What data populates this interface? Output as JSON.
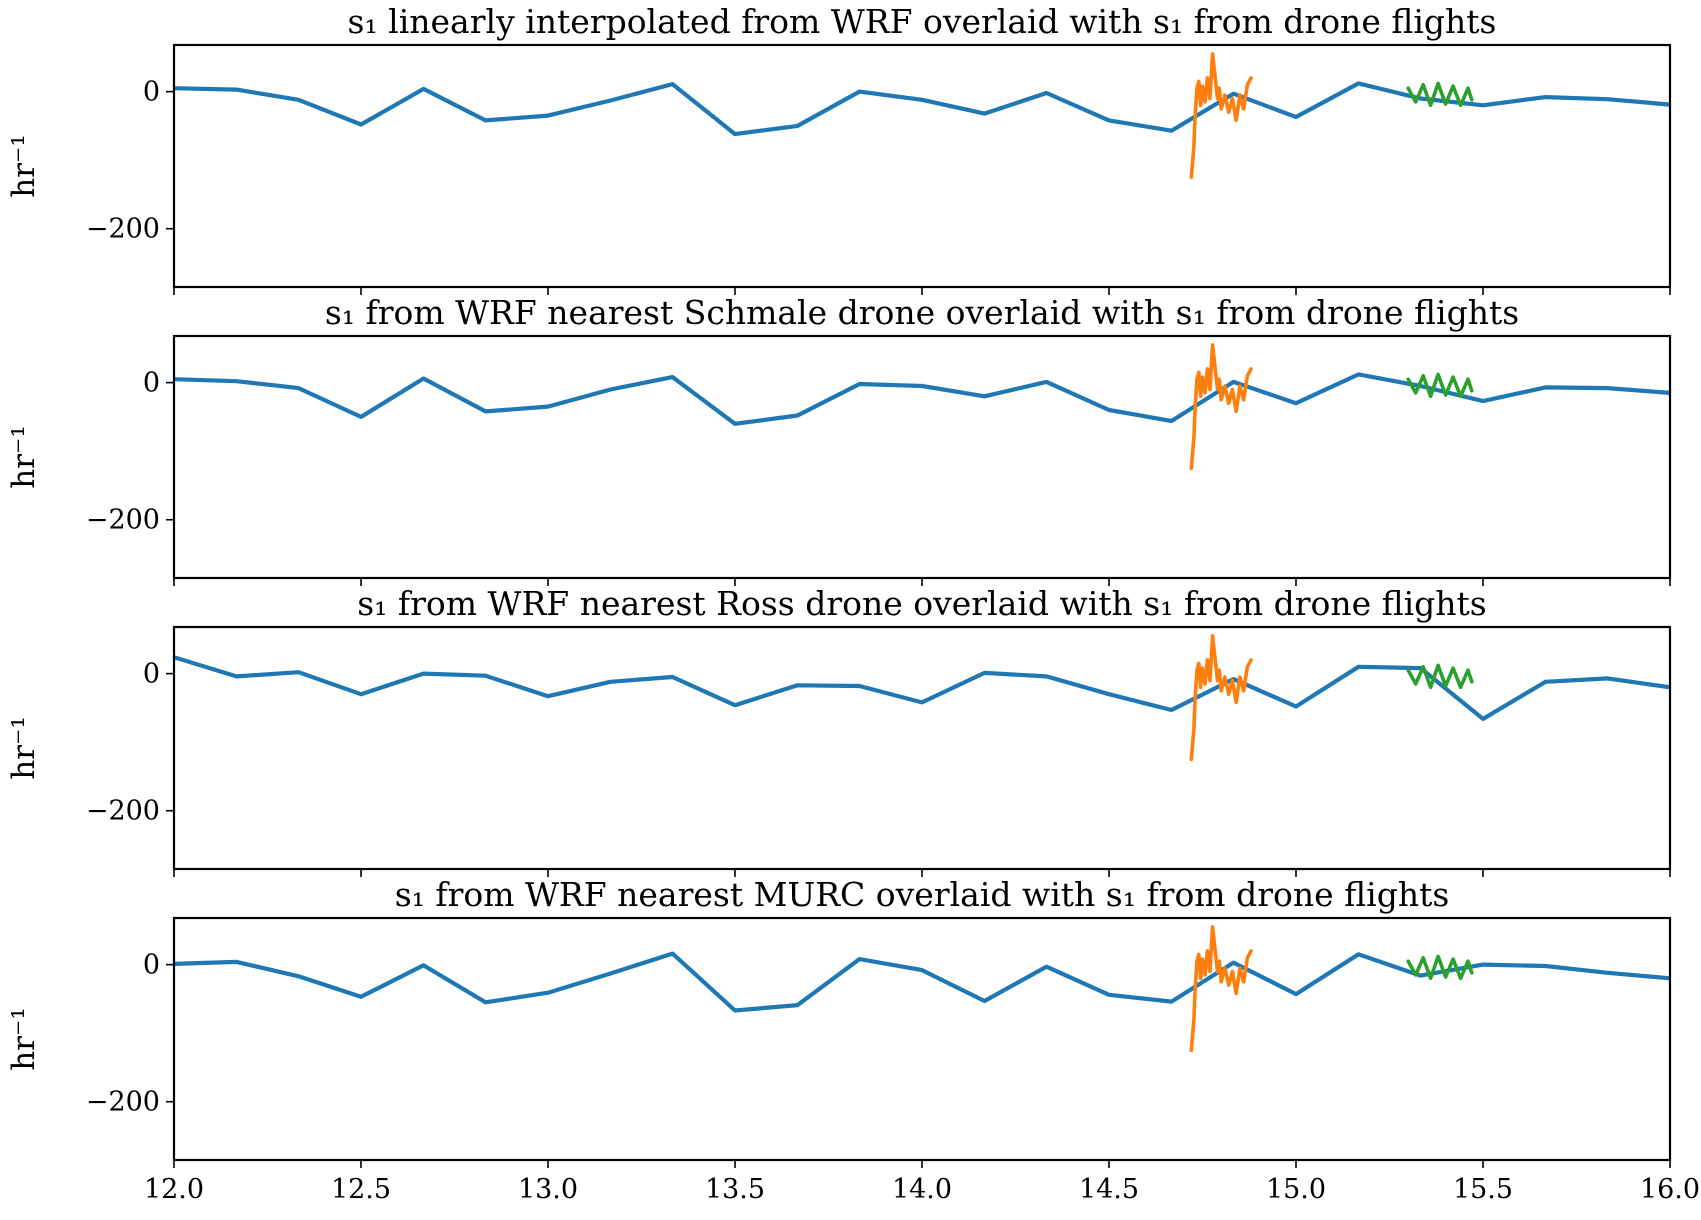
{
  "colors": {
    "wrf": "#1f77b4",
    "schmale_drone": "#ff7f0e",
    "ross_drone": "#2ca02c"
  },
  "chart_data": [
    {
      "type": "line",
      "title": "s₁ linearly interpolated from WRF overlaid with s₁ from drone flights",
      "ylabel": "hr⁻¹",
      "xlim": [
        12.0,
        16.0
      ],
      "ylim": [
        -285,
        68
      ],
      "xticks": [
        "12.0",
        "12.5",
        "13.0",
        "13.5",
        "14.0",
        "14.5",
        "15.0",
        "15.5",
        "16.0"
      ],
      "yticks": [
        "0",
        "−200"
      ],
      "grid": false,
      "series": [
        {
          "color": "#1f77b4",
          "x": [
            12.0,
            12.167,
            12.333,
            12.5,
            12.667,
            12.833,
            13.0,
            13.167,
            13.333,
            13.5,
            13.667,
            13.833,
            14.0,
            14.167,
            14.333,
            14.5,
            14.667,
            14.833,
            15.0,
            15.167,
            15.333,
            15.5,
            15.667,
            15.833,
            16.0
          ],
          "y": [
            5,
            3,
            -12,
            -48,
            4,
            -42,
            -35,
            -13,
            11,
            -62,
            -50,
            0,
            -12,
            -32,
            -2,
            -42,
            -57,
            -3,
            -37,
            12,
            -10,
            -20,
            -8,
            -11,
            -19
          ]
        },
        {
          "color": "#ff7f0e",
          "x": [
            14.72,
            14.727,
            14.73,
            14.735,
            14.74,
            14.745,
            14.75,
            14.757,
            14.763,
            14.77,
            14.777,
            14.785,
            14.79,
            14.795,
            14.8,
            14.81,
            14.82,
            14.83,
            14.84,
            14.85,
            14.86,
            14.87,
            14.88
          ],
          "y": [
            -125,
            -80,
            -40,
            5,
            15,
            -20,
            8,
            -15,
            20,
            -10,
            55,
            15,
            -10,
            5,
            -25,
            -5,
            -30,
            -10,
            -42,
            -5,
            -25,
            10,
            20
          ]
        },
        {
          "color": "#2ca02c",
          "x": [
            15.3,
            15.32,
            15.34,
            15.36,
            15.38,
            15.4,
            15.42,
            15.44,
            15.46,
            15.47
          ],
          "y": [
            5,
            -15,
            10,
            -20,
            12,
            -18,
            8,
            -20,
            5,
            -12
          ]
        }
      ]
    },
    {
      "type": "line",
      "title": "s₁ from WRF nearest Schmale drone overlaid with s₁ from drone flights",
      "ylabel": "hr⁻¹",
      "xlim": [
        12.0,
        16.0
      ],
      "ylim": [
        -285,
        68
      ],
      "xticks": [
        "12.0",
        "12.5",
        "13.0",
        "13.5",
        "14.0",
        "14.5",
        "15.0",
        "15.5",
        "16.0"
      ],
      "yticks": [
        "0",
        "−200"
      ],
      "grid": false,
      "series": [
        {
          "color": "#1f77b4",
          "x": [
            12.0,
            12.167,
            12.333,
            12.5,
            12.667,
            12.833,
            13.0,
            13.167,
            13.333,
            13.5,
            13.667,
            13.833,
            14.0,
            14.167,
            14.333,
            14.5,
            14.667,
            14.833,
            15.0,
            15.167,
            15.333,
            15.5,
            15.667,
            15.833,
            16.0
          ],
          "y": [
            5,
            2,
            -8,
            -50,
            6,
            -42,
            -35,
            -10,
            8,
            -60,
            -48,
            -2,
            -5,
            -20,
            1,
            -40,
            -56,
            1,
            -30,
            12,
            -5,
            -27,
            -7,
            -8,
            -15
          ]
        },
        {
          "color": "#ff7f0e",
          "x": [
            14.72,
            14.727,
            14.73,
            14.735,
            14.74,
            14.745,
            14.75,
            14.757,
            14.763,
            14.77,
            14.777,
            14.785,
            14.79,
            14.795,
            14.8,
            14.81,
            14.82,
            14.83,
            14.84,
            14.85,
            14.86,
            14.87,
            14.88
          ],
          "y": [
            -125,
            -80,
            -40,
            5,
            15,
            -20,
            8,
            -15,
            20,
            -10,
            55,
            15,
            -10,
            5,
            -25,
            -5,
            -30,
            -10,
            -42,
            -5,
            -25,
            10,
            20
          ]
        },
        {
          "color": "#2ca02c",
          "x": [
            15.3,
            15.32,
            15.34,
            15.36,
            15.38,
            15.4,
            15.42,
            15.44,
            15.46,
            15.47
          ],
          "y": [
            5,
            -15,
            10,
            -20,
            12,
            -18,
            8,
            -20,
            5,
            -12
          ]
        }
      ]
    },
    {
      "type": "line",
      "title": "s₁ from WRF nearest Ross drone overlaid with s₁ from drone flights",
      "ylabel": "hr⁻¹",
      "xlim": [
        12.0,
        16.0
      ],
      "ylim": [
        -285,
        68
      ],
      "xticks": [
        "12.0",
        "12.5",
        "13.0",
        "13.5",
        "14.0",
        "14.5",
        "15.0",
        "15.5",
        "16.0"
      ],
      "yticks": [
        "0",
        "−200"
      ],
      "grid": false,
      "series": [
        {
          "color": "#1f77b4",
          "x": [
            12.0,
            12.167,
            12.333,
            12.5,
            12.667,
            12.833,
            13.0,
            13.167,
            13.333,
            13.5,
            13.667,
            13.833,
            14.0,
            14.167,
            14.333,
            14.5,
            14.667,
            14.833,
            15.0,
            15.167,
            15.333,
            15.5,
            15.667,
            15.833,
            16.0
          ],
          "y": [
            24,
            -4,
            2,
            -30,
            0,
            -3,
            -33,
            -12,
            -5,
            -46,
            -17,
            -18,
            -42,
            1,
            -4,
            -30,
            -53,
            -8,
            -48,
            10,
            8,
            -66,
            -12,
            -7,
            -20
          ]
        },
        {
          "color": "#ff7f0e",
          "x": [
            14.72,
            14.727,
            14.73,
            14.735,
            14.74,
            14.745,
            14.75,
            14.757,
            14.763,
            14.77,
            14.777,
            14.785,
            14.79,
            14.795,
            14.8,
            14.81,
            14.82,
            14.83,
            14.84,
            14.85,
            14.86,
            14.87,
            14.88
          ],
          "y": [
            -125,
            -80,
            -40,
            5,
            15,
            -20,
            8,
            -15,
            20,
            -10,
            55,
            15,
            -10,
            5,
            -25,
            -5,
            -30,
            -10,
            -42,
            -5,
            -25,
            10,
            20
          ]
        },
        {
          "color": "#2ca02c",
          "x": [
            15.3,
            15.32,
            15.34,
            15.36,
            15.38,
            15.4,
            15.42,
            15.44,
            15.46,
            15.47
          ],
          "y": [
            5,
            -15,
            10,
            -20,
            12,
            -18,
            8,
            -20,
            5,
            -12
          ]
        }
      ]
    },
    {
      "type": "line",
      "title": "s₁ from WRF nearest MURC overlaid with s₁ from drone flights",
      "ylabel": "hr⁻¹",
      "xlim": [
        12.0,
        16.0
      ],
      "ylim": [
        -285,
        68
      ],
      "xticks": [
        "12.0",
        "12.5",
        "13.0",
        "13.5",
        "14.0",
        "14.5",
        "15.0",
        "15.5",
        "16.0"
      ],
      "yticks": [
        "0",
        "−200"
      ],
      "grid": false,
      "series": [
        {
          "color": "#1f77b4",
          "x": [
            12.0,
            12.167,
            12.333,
            12.5,
            12.667,
            12.833,
            13.0,
            13.167,
            13.333,
            13.5,
            13.667,
            13.833,
            14.0,
            14.167,
            14.333,
            14.5,
            14.667,
            14.833,
            15.0,
            15.167,
            15.333,
            15.5,
            15.667,
            15.833,
            16.0
          ],
          "y": [
            1,
            4,
            -17,
            -47,
            -1,
            -55,
            -41,
            -13,
            16,
            -67,
            -59,
            8,
            -8,
            -53,
            -3,
            -44,
            -54,
            3,
            -43,
            15,
            -16,
            0,
            -2,
            -12,
            -20
          ]
        },
        {
          "color": "#ff7f0e",
          "x": [
            14.72,
            14.727,
            14.73,
            14.735,
            14.74,
            14.745,
            14.75,
            14.757,
            14.763,
            14.77,
            14.777,
            14.785,
            14.79,
            14.795,
            14.8,
            14.81,
            14.82,
            14.83,
            14.84,
            14.85,
            14.86,
            14.87,
            14.88
          ],
          "y": [
            -125,
            -80,
            -40,
            5,
            15,
            -20,
            8,
            -15,
            20,
            -10,
            55,
            15,
            -10,
            5,
            -25,
            -5,
            -30,
            -10,
            -42,
            -5,
            -25,
            10,
            20
          ]
        },
        {
          "color": "#2ca02c",
          "x": [
            15.3,
            15.32,
            15.34,
            15.36,
            15.38,
            15.4,
            15.42,
            15.44,
            15.46,
            15.47
          ],
          "y": [
            5,
            -15,
            10,
            -20,
            12,
            -18,
            8,
            -20,
            5,
            -12
          ]
        }
      ]
    }
  ]
}
